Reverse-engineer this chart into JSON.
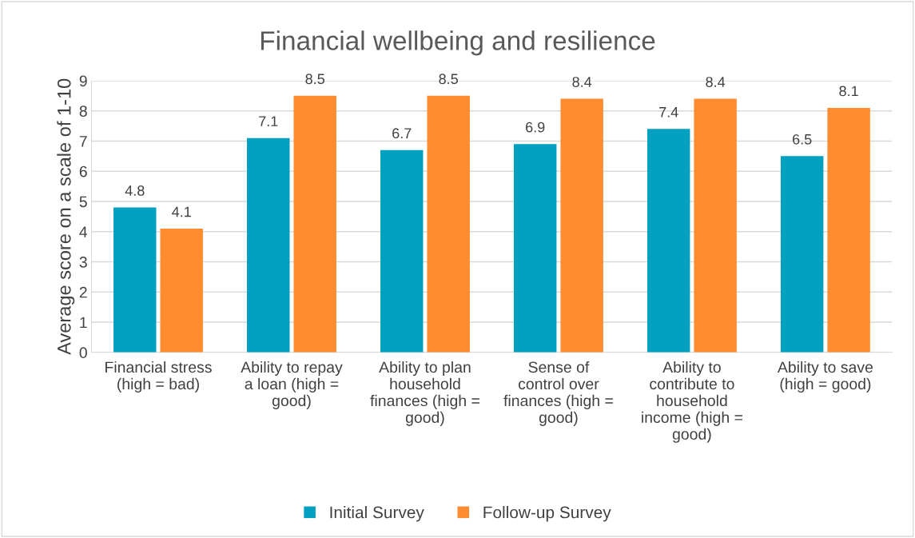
{
  "chart_data": {
    "type": "bar",
    "title": "Financial wellbeing and resilience",
    "ylabel": "Average score on a scale of 1-10",
    "categories": [
      "Financial stress\n(high = bad)",
      "Ability to repay\na loan (high =\ngood)",
      "Ability to plan\nhousehold\nfinances (high =\ngood)",
      "Sense of\ncontrol over\nfinances (high =\ngood)",
      "Ability to\ncontribute to\nhousehold\nincome (high =\ngood)",
      "Ability to save\n(high = good)"
    ],
    "series": [
      {
        "name": "Initial Survey",
        "color": "#00a0c0",
        "values": [
          4.8,
          7.1,
          6.7,
          6.9,
          7.4,
          6.5
        ]
      },
      {
        "name": "Follow-up Survey",
        "color": "#ff8c30",
        "values": [
          4.1,
          8.5,
          8.5,
          8.4,
          8.4,
          8.1
        ]
      }
    ],
    "ylim": [
      0,
      9
    ],
    "yticks": [
      0,
      1,
      2,
      3,
      4,
      5,
      6,
      7,
      8,
      9
    ],
    "grid": "y",
    "legend": "bottom",
    "data_labels": true
  }
}
